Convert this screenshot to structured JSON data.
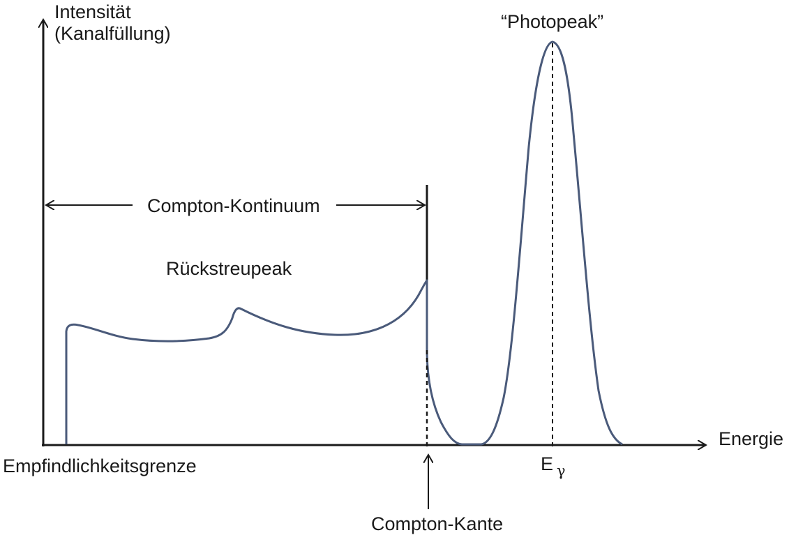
{
  "diagram": {
    "y_axis_label_line1": "Intensität",
    "y_axis_label_line2": "(Kanalfüllung)",
    "x_axis_label": "Energie",
    "photopeak_label": "“Photopeak”",
    "backscatter_label": "Rückstreupeak",
    "compton_continuum_label": "Compton-Kontinuum",
    "sensitivity_limit_label": "Empfindlichkeitsgrenze",
    "compton_edge_label": "Compton-Kante",
    "energy_symbol": "E",
    "energy_subscript": "γ"
  },
  "colors": {
    "spectrum_curve": "#4a5a7a",
    "axes": "#1a1a1a"
  }
}
